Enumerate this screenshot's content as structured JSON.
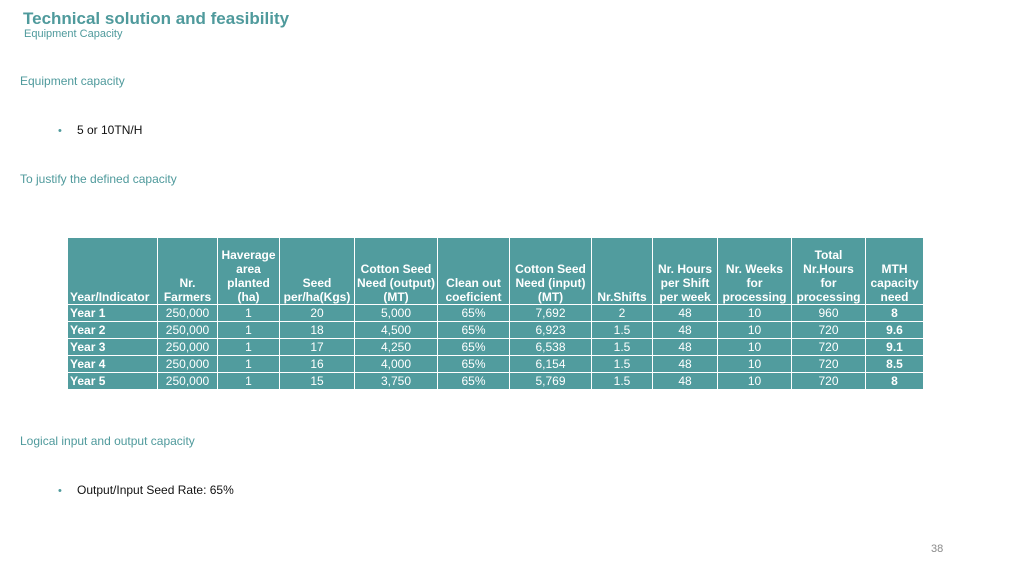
{
  "header": {
    "title": "Technical solution and feasibility",
    "subtitle": "Equipment Capacity"
  },
  "sections": {
    "equipment_capacity": "Equipment capacity",
    "capacity_bullet": "5 or 10TN/H",
    "justify": "To justify the defined capacity",
    "logical": "Logical input and output capacity",
    "logical_bullet": "Output/Input Seed Rate: 65%",
    "bullet_glyph": "•"
  },
  "table": {
    "headers": [
      "Year/Indicator",
      "Nr. Farmers",
      "Haverage area planted (ha)",
      "Seed per/ha(Kgs)",
      "Cotton Seed Need (output)(MT)",
      "Clean out coeficient",
      "Cotton Seed Need (input) (MT)",
      "Nr.Shifts",
      "Nr. Hours per Shift per week",
      "Nr. Weeks for processing",
      "Total Nr.Hours for processing",
      "MTH capacity need"
    ],
    "rows": [
      [
        "Year 1",
        "250,000",
        "1",
        "20",
        "5,000",
        "65%",
        "7,692",
        "2",
        "48",
        "10",
        "960",
        "8"
      ],
      [
        "Year 2",
        "250,000",
        "1",
        "18",
        "4,500",
        "65%",
        "6,923",
        "1.5",
        "48",
        "10",
        "720",
        "9.6"
      ],
      [
        "Year 3",
        "250,000",
        "1",
        "17",
        "4,250",
        "65%",
        "6,538",
        "1.5",
        "48",
        "10",
        "720",
        "9.1"
      ],
      [
        "Year 4",
        "250,000",
        "1",
        "16",
        "4,000",
        "65%",
        "6,154",
        "1.5",
        "48",
        "10",
        "720",
        "8.5"
      ],
      [
        "Year 5",
        "250,000",
        "1",
        "15",
        "3,750",
        "65%",
        "5,769",
        "1.5",
        "48",
        "10",
        "720",
        "8"
      ]
    ]
  },
  "footer": {
    "page_number": "38"
  }
}
